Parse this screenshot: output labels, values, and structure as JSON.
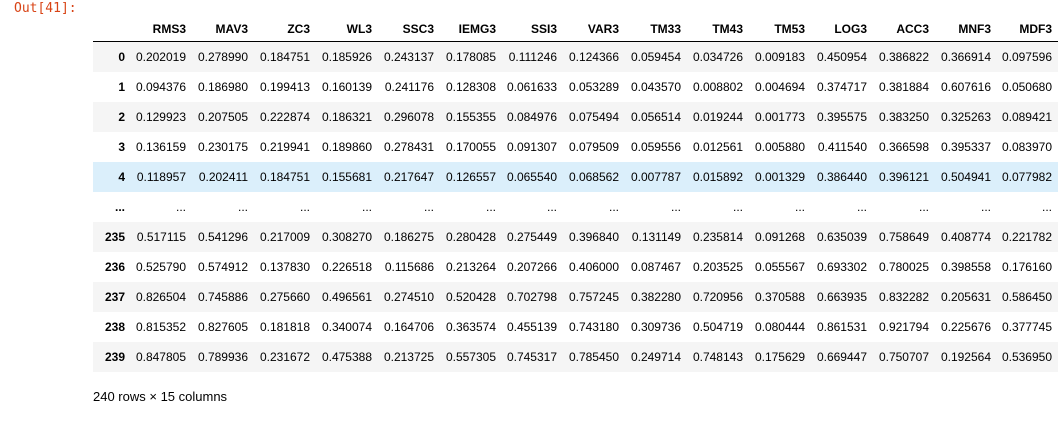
{
  "prompt": "Out[41]:",
  "table": {
    "columns": [
      "",
      "RMS3",
      "MAV3",
      "ZC3",
      "WL3",
      "SSC3",
      "IEMG3",
      "SSI3",
      "VAR3",
      "TM33",
      "TM43",
      "TM53",
      "LOG3",
      "ACC3",
      "MNF3",
      "MDF3"
    ],
    "rows": [
      {
        "index": "0",
        "cells": [
          "0.202019",
          "0.278990",
          "0.184751",
          "0.185926",
          "0.243137",
          "0.178085",
          "0.111246",
          "0.124366",
          "0.059454",
          "0.034726",
          "0.009183",
          "0.450954",
          "0.386822",
          "0.366914",
          "0.097596"
        ]
      },
      {
        "index": "1",
        "cells": [
          "0.094376",
          "0.186980",
          "0.199413",
          "0.160139",
          "0.241176",
          "0.128308",
          "0.061633",
          "0.053289",
          "0.043570",
          "0.008802",
          "0.004694",
          "0.374717",
          "0.381884",
          "0.607616",
          "0.050680"
        ]
      },
      {
        "index": "2",
        "cells": [
          "0.129923",
          "0.207505",
          "0.222874",
          "0.186321",
          "0.296078",
          "0.155355",
          "0.084976",
          "0.075494",
          "0.056514",
          "0.019244",
          "0.001773",
          "0.395575",
          "0.383250",
          "0.325263",
          "0.089421"
        ]
      },
      {
        "index": "3",
        "cells": [
          "0.136159",
          "0.230175",
          "0.219941",
          "0.189860",
          "0.278431",
          "0.170055",
          "0.091307",
          "0.079509",
          "0.059556",
          "0.012561",
          "0.005880",
          "0.411540",
          "0.366598",
          "0.395337",
          "0.083970"
        ]
      },
      {
        "index": "4",
        "cells": [
          "0.118957",
          "0.202411",
          "0.184751",
          "0.155681",
          "0.217647",
          "0.126557",
          "0.065540",
          "0.068562",
          "0.007787",
          "0.015892",
          "0.001329",
          "0.386440",
          "0.396121",
          "0.504941",
          "0.077982"
        ],
        "highlighted": true
      },
      {
        "index": "...",
        "cells": [
          "...",
          "...",
          "...",
          "...",
          "...",
          "...",
          "...",
          "...",
          "...",
          "...",
          "...",
          "...",
          "...",
          "...",
          "..."
        ]
      },
      {
        "index": "235",
        "cells": [
          "0.517115",
          "0.541296",
          "0.217009",
          "0.308270",
          "0.186275",
          "0.280428",
          "0.275449",
          "0.396840",
          "0.131149",
          "0.235814",
          "0.091268",
          "0.635039",
          "0.758649",
          "0.408774",
          "0.221782"
        ]
      },
      {
        "index": "236",
        "cells": [
          "0.525790",
          "0.574912",
          "0.137830",
          "0.226518",
          "0.115686",
          "0.213264",
          "0.207266",
          "0.406000",
          "0.087467",
          "0.203525",
          "0.055567",
          "0.693302",
          "0.780025",
          "0.398558",
          "0.176160"
        ]
      },
      {
        "index": "237",
        "cells": [
          "0.826504",
          "0.745886",
          "0.275660",
          "0.496561",
          "0.274510",
          "0.520428",
          "0.702798",
          "0.757245",
          "0.382280",
          "0.720956",
          "0.370588",
          "0.663935",
          "0.832282",
          "0.205631",
          "0.586450"
        ]
      },
      {
        "index": "238",
        "cells": [
          "0.815352",
          "0.827605",
          "0.181818",
          "0.340074",
          "0.164706",
          "0.363574",
          "0.455139",
          "0.743180",
          "0.309736",
          "0.504719",
          "0.080444",
          "0.861531",
          "0.921794",
          "0.225676",
          "0.377745"
        ]
      },
      {
        "index": "239",
        "cells": [
          "0.847805",
          "0.789936",
          "0.231672",
          "0.475388",
          "0.213725",
          "0.557305",
          "0.745317",
          "0.785450",
          "0.249714",
          "0.748143",
          "0.175629",
          "0.669447",
          "0.750707",
          "0.192564",
          "0.536950"
        ]
      }
    ]
  },
  "footer": "240 rows × 15 columns",
  "colors": {
    "prompt": "#d84315",
    "row_stripe": "#f5f5f5",
    "row_hover": "#dbeffb"
  }
}
